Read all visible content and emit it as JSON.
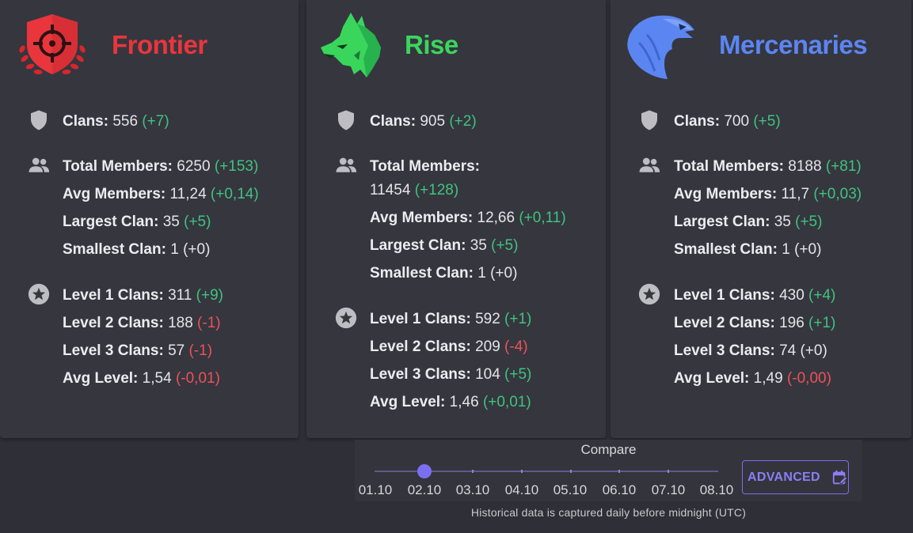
{
  "colors": {
    "frontier": "#e8363c",
    "rise": "#3ad65c",
    "mercenaries": "#5b86f2",
    "positive": "#3ec47c",
    "negative": "#ec5257",
    "accent": "#7b6ff0"
  },
  "factions": [
    {
      "name": "Frontier",
      "icon": "shield-crosshair-logo",
      "clans": {
        "label": "Clans:",
        "value": "556",
        "delta": "(+7)"
      },
      "total_members": {
        "label": "Total Members:",
        "value": "6250",
        "delta": "(+153)"
      },
      "avg_members": {
        "label": "Avg Members:",
        "value": "11,24",
        "delta": "(+0,14)"
      },
      "largest_clan": {
        "label": "Largest Clan:",
        "value": "35",
        "delta": "(+5)"
      },
      "smallest_clan": {
        "label": "Smallest Clan:",
        "value": "1",
        "delta": "(+0)"
      },
      "level1": {
        "label": "Level 1 Clans:",
        "value": "311",
        "delta": "(+9)"
      },
      "level2": {
        "label": "Level 2 Clans:",
        "value": "188",
        "delta": "(-1)"
      },
      "level3": {
        "label": "Level 3 Clans:",
        "value": "57",
        "delta": "(-1)"
      },
      "avg_level": {
        "label": "Avg Level:",
        "value": "1,54",
        "delta": "(-0,01)"
      }
    },
    {
      "name": "Rise",
      "icon": "wolf-head-logo",
      "clans": {
        "label": "Clans:",
        "value": "905",
        "delta": "(+2)"
      },
      "total_members": {
        "label": "Total Members:",
        "value": "11454",
        "delta": "(+128)"
      },
      "avg_members": {
        "label": "Avg Members:",
        "value": "12,66",
        "delta": "(+0,11)"
      },
      "largest_clan": {
        "label": "Largest Clan:",
        "value": "35",
        "delta": "(+5)"
      },
      "smallest_clan": {
        "label": "Smallest Clan:",
        "value": "1",
        "delta": "(+0)"
      },
      "level1": {
        "label": "Level 1 Clans:",
        "value": "592",
        "delta": "(+1)"
      },
      "level2": {
        "label": "Level 2 Clans:",
        "value": "209",
        "delta": "(-4)"
      },
      "level3": {
        "label": "Level 3 Clans:",
        "value": "104",
        "delta": "(+5)"
      },
      "avg_level": {
        "label": "Avg Level:",
        "value": "1,46",
        "delta": "(+0,01)"
      }
    },
    {
      "name": "Mercenaries",
      "icon": "eagle-head-logo",
      "clans": {
        "label": "Clans:",
        "value": "700",
        "delta": "(+5)"
      },
      "total_members": {
        "label": "Total Members:",
        "value": "8188",
        "delta": "(+81)"
      },
      "avg_members": {
        "label": "Avg Members:",
        "value": "11,7",
        "delta": "(+0,03)"
      },
      "largest_clan": {
        "label": "Largest Clan:",
        "value": "35",
        "delta": "(+5)"
      },
      "smallest_clan": {
        "label": "Smallest Clan:",
        "value": "1",
        "delta": "(+0)"
      },
      "level1": {
        "label": "Level 1 Clans:",
        "value": "430",
        "delta": "(+4)"
      },
      "level2": {
        "label": "Level 2 Clans:",
        "value": "196",
        "delta": "(+1)"
      },
      "level3": {
        "label": "Level 3 Clans:",
        "value": "74",
        "delta": "(+0)"
      },
      "avg_level": {
        "label": "Avg Level:",
        "value": "1,49",
        "delta": "(-0,00)"
      }
    }
  ],
  "compare": {
    "title": "Compare",
    "dates": [
      "01.10",
      "02.10",
      "03.10",
      "04.10",
      "05.10",
      "06.10",
      "07.10",
      "08.10"
    ],
    "selected_date": "02.10",
    "advanced_label": "ADVANCED",
    "advanced_icon": "calendar-edit-icon"
  },
  "footnote": "Historical data is captured daily before midnight (UTC)"
}
